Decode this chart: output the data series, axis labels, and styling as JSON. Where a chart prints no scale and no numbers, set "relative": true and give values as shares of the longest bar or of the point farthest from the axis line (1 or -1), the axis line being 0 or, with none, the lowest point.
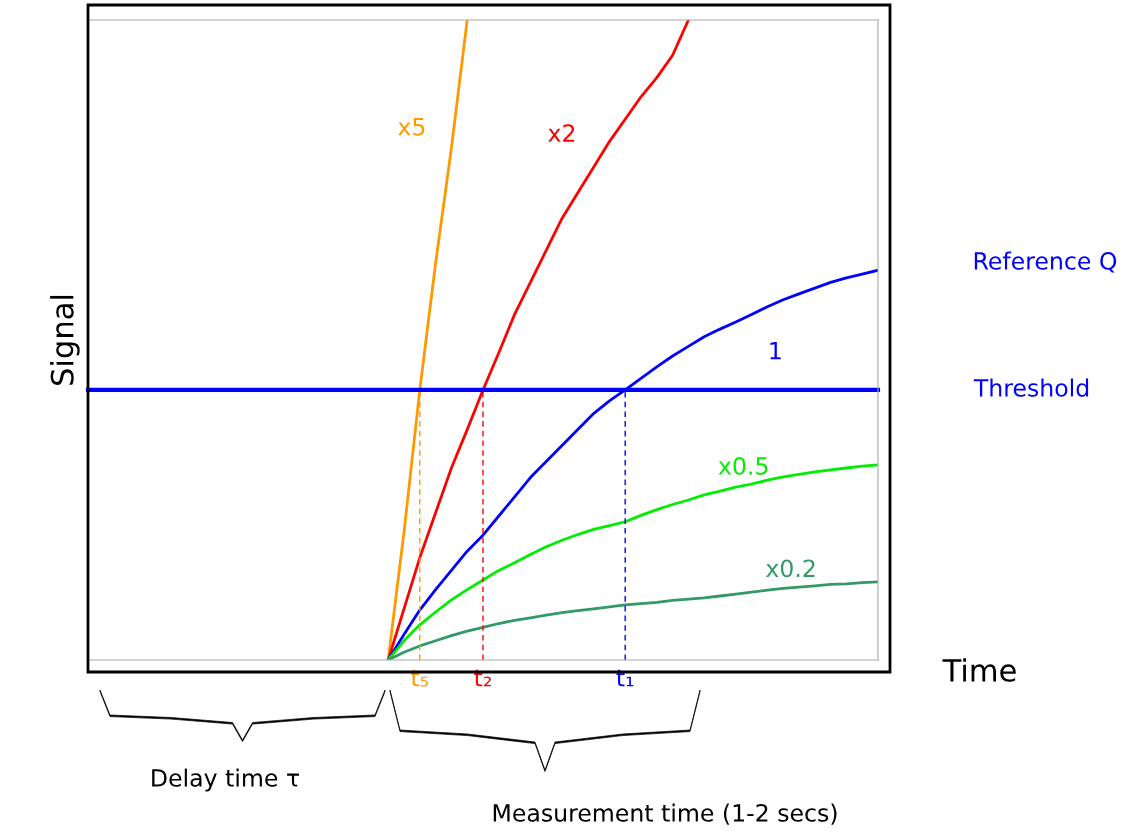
{
  "chart_data": {
    "type": "line",
    "relative": true,
    "xlabel": "Time",
    "ylabel": "Signal",
    "categories": [
      null,
      null,
      null,
      null,
      null,
      null,
      null,
      null,
      null,
      null,
      null,
      null,
      null,
      null,
      null,
      null,
      null,
      null,
      null,
      null,
      null,
      "t₅",
      null,
      null,
      null,
      "t₂",
      null,
      null,
      null,
      null,
      null,
      null,
      null,
      null,
      "t₁",
      null,
      null,
      null,
      null,
      null,
      null,
      null,
      null,
      null,
      null,
      null,
      null,
      null,
      null,
      null,
      null
    ],
    "grid": false,
    "legend": false,
    "marker": "none",
    "line_style": "solid",
    "series": [
      {
        "name": "x5",
        "color": "#ff9900",
        "values": [
          null,
          null,
          null,
          null,
          null,
          null,
          null,
          null,
          null,
          null,
          null,
          null,
          null,
          null,
          null,
          null,
          null,
          null,
          null,
          0,
          0.2,
          0.422,
          0.62,
          0.8,
          1,
          null,
          null,
          null,
          null,
          null,
          null,
          null,
          null,
          null,
          null,
          null,
          null,
          null,
          null,
          null,
          null,
          null,
          null,
          null,
          null,
          null,
          null,
          null,
          null,
          null,
          null
        ]
      },
      {
        "name": "x2",
        "color": "#ff0000",
        "values": [
          null,
          null,
          null,
          null,
          null,
          null,
          null,
          null,
          null,
          null,
          null,
          null,
          null,
          null,
          null,
          null,
          null,
          null,
          null,
          0,
          0.08,
          0.16,
          0.23,
          0.3,
          0.36,
          0.422,
          0.48,
          0.54,
          0.59,
          0.64,
          0.69,
          0.73,
          0.77,
          0.81,
          0.845,
          0.88,
          0.91,
          0.945,
          1,
          null,
          null,
          null,
          null,
          null,
          null,
          null,
          null,
          null,
          null,
          null,
          null
        ]
      },
      {
        "name": "1",
        "color": "#0000ff",
        "values": [
          null,
          null,
          null,
          null,
          null,
          null,
          null,
          null,
          null,
          null,
          null,
          null,
          null,
          null,
          null,
          null,
          null,
          null,
          null,
          0,
          0.04,
          0.078,
          0.11,
          0.14,
          0.17,
          0.195,
          0.225,
          0.255,
          0.285,
          0.31,
          0.335,
          0.36,
          0.385,
          0.405,
          0.422,
          0.44,
          0.458,
          0.475,
          0.49,
          0.505,
          0.517,
          0.528,
          0.54,
          0.552,
          0.563,
          0.572,
          0.581,
          0.59,
          0.597,
          0.603,
          0.609
        ]
      },
      {
        "name": "x0.5",
        "color": "#00ee00",
        "values": [
          null,
          null,
          null,
          null,
          null,
          null,
          null,
          null,
          null,
          null,
          null,
          null,
          null,
          null,
          null,
          null,
          null,
          null,
          null,
          0,
          0.03,
          0.055,
          0.075,
          0.094,
          0.11,
          0.125,
          0.14,
          0.152,
          0.165,
          0.177,
          0.187,
          0.196,
          0.204,
          0.21,
          0.216,
          0.226,
          0.235,
          0.243,
          0.25,
          0.258,
          0.264,
          0.27,
          0.275,
          0.281,
          0.286,
          0.29,
          0.294,
          0.297,
          0.3,
          0.303,
          0.305
        ]
      },
      {
        "name": "x0.2",
        "color": "#339966",
        "values": [
          null,
          null,
          null,
          null,
          null,
          null,
          null,
          null,
          null,
          null,
          null,
          null,
          null,
          null,
          null,
          null,
          null,
          null,
          null,
          0,
          0.012,
          0.022,
          0.03,
          0.038,
          0.045,
          0.051,
          0.057,
          0.062,
          0.066,
          0.07,
          0.074,
          0.077,
          0.08,
          0.083,
          0.086,
          0.088,
          0.09,
          0.093,
          0.095,
          0.097,
          0.1,
          0.103,
          0.106,
          0.109,
          0.112,
          0.114,
          0.116,
          0.118,
          0.119,
          0.121,
          0.122
        ]
      }
    ],
    "ref_lines": [
      {
        "axis": "y",
        "value": 0.422,
        "label": "Threshold",
        "color": "#0000ff",
        "line_style": "solid"
      },
      {
        "axis": "x",
        "value": "t₅",
        "color": "#ff9900",
        "line_style": "dashed"
      },
      {
        "axis": "x",
        "value": "t₂",
        "color": "#ff0000",
        "line_style": "dashed"
      },
      {
        "axis": "x",
        "value": "t₁",
        "color": "#0000ff",
        "line_style": "dashed"
      }
    ],
    "annotations": [
      "Reference Q",
      "Delay time τ",
      "Measurement time (1-2 secs)"
    ]
  }
}
